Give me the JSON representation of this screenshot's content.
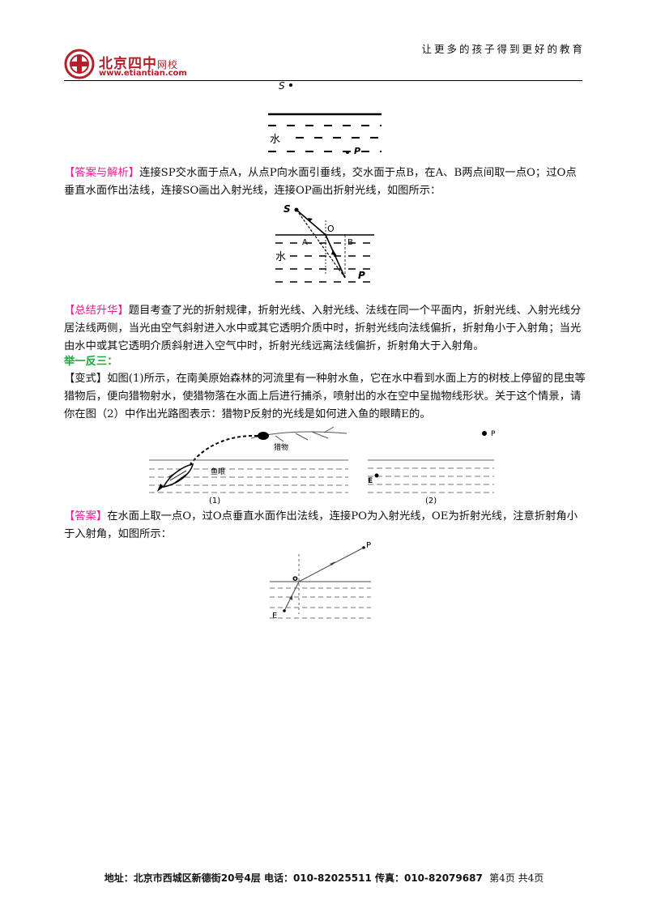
{
  "header": {
    "brand": "北京四中",
    "brand_suffix": "网校",
    "url": "www.etiantian.com",
    "slogan": "让更多的孩子得到更好的教育"
  },
  "figure1": {
    "s": "S",
    "water": "水",
    "p": "P"
  },
  "answer1": {
    "tag": "【答案与解析】",
    "text": "连接SP交水面于点A，从点P向水面引垂线，交水面于点B，在A、B两点间取一点O；过O点垂直水面作出法线，连接SO画出入射光线，连接OP画出折射光线，如图所示："
  },
  "figure2": {
    "s": "S",
    "o": "O",
    "a": "A",
    "b": "B",
    "water": "水",
    "p": "P"
  },
  "summary": {
    "tag": "【总结升华】",
    "text": "题目考查了光的折射规律，折射光线、入射光线、法线在同一个平面内，折射光线、入射光线分居法线两侧，当光由空气斜射进入水中或其它透明介质中时，折射光线向法线偏折，折射角小于入射角；当光由水中或其它透明介质斜射进入空气中时，折射光线远离法线偏折，折射角大于入射角。"
  },
  "section": {
    "title": "举一反三："
  },
  "variant": {
    "tag": "【变式】",
    "text": "如图(1)所示，在南美原始森林的河流里有一种射水鱼，它在水中看到水面上方的树枝上停留的昆虫等猎物后，便向猎物射水，使猎物落在水面上后进行捕杀，喷射出的水在空中呈抛物线形状。关于这个情景，请你在图（2）中作出光路图表示：猎物P反射的光线是如何进入鱼的眼睛E的。"
  },
  "figure3": {
    "prey": "猎物",
    "fish_eye": "鱼眼",
    "caption1": "(1)",
    "p": "P",
    "e": "E",
    "caption2": "(2)"
  },
  "answer2": {
    "tag": "【答案】",
    "text": "在水面上取一点O，过O点垂直水面作出法线，连接PO为入射光线，OE为折射光线，注意折射角小于入射角，如图所示："
  },
  "figure4": {
    "p": "P",
    "o": "o",
    "e": "E"
  },
  "footer": {
    "address": "地址：北京市西城区新德街20号4层  电话：010-82025511  传真：010-82079687",
    "page": "第4页  共4页"
  },
  "colors": {
    "brand_red": "#b3202a",
    "tag_magenta": "#e61e8c",
    "section_green": "#1ea83c"
  }
}
